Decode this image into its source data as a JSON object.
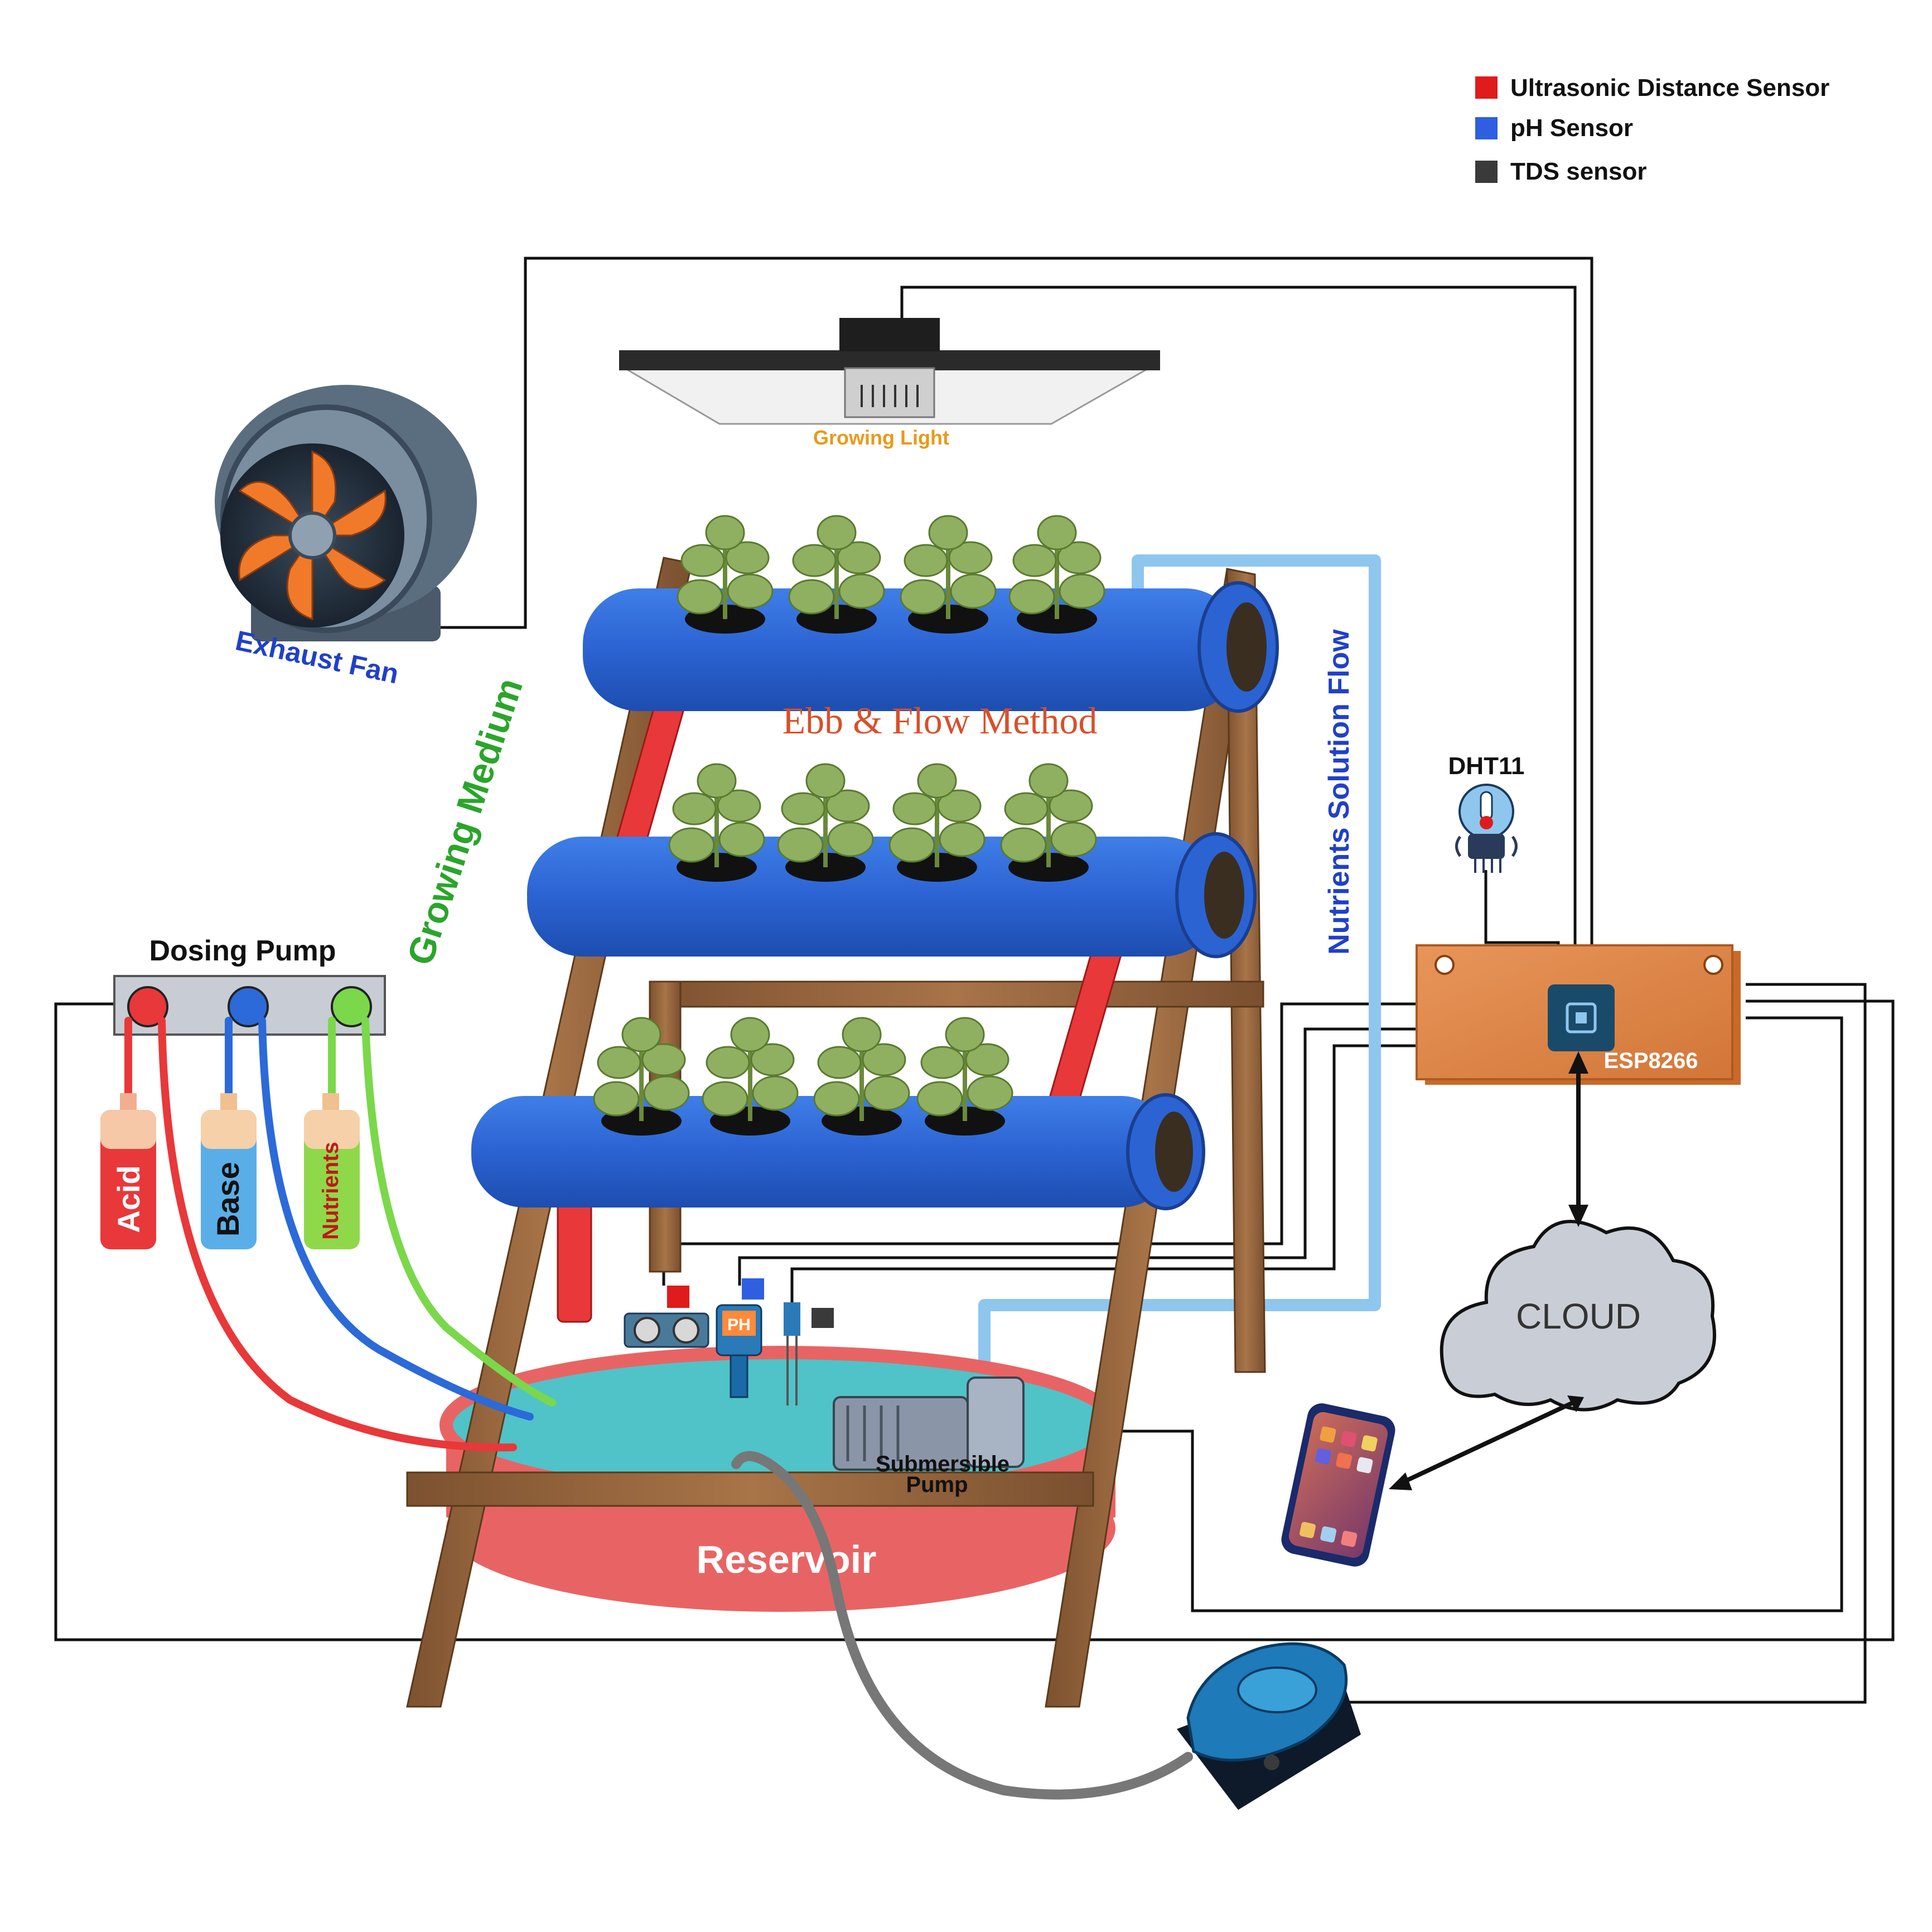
{
  "legend": {
    "items": [
      {
        "label": "Ultrasonic Distance Sensor",
        "color": "#e01b1b"
      },
      {
        "label": "pH Sensor",
        "color": "#2f5fe0"
      },
      {
        "label": "TDS sensor",
        "color": "#3a3a3a"
      }
    ]
  },
  "labels": {
    "growing_light": "Growing Light",
    "exhaust_fan": "Exhaust Fan",
    "method": "Ebb & Flow Method",
    "growing_medium": "Growing Medium",
    "nutrients_flow": "Nutrients Solution Flow",
    "dht11": "DHT11",
    "esp": "ESP8266",
    "dosing_pump": "Dosing Pump",
    "cloud": "CLOUD",
    "submersible_pump_1": "Submersible",
    "submersible_pump_2": "Pump",
    "reservoir": "Reservoir",
    "ph_badge": "PH"
  },
  "bottles": [
    {
      "label": "Acid",
      "color": "#e8383a"
    },
    {
      "label": "Base",
      "color": "#5aaee8"
    },
    {
      "label": "Nutrients",
      "color": "#8fd84a"
    }
  ],
  "colors": {
    "pipe": "#2b6ad8",
    "wood": "#9a6a3e",
    "board": "#e08a4a",
    "reservoir": "#e86464",
    "water": "#4fc3c8",
    "wire": "#111111",
    "flow_tube": "#8ec6ee",
    "green_text": "#2aa52a",
    "blue_text": "#2140c8",
    "orange_text": "#e89a1a",
    "red_text": "#d8502a"
  },
  "icons": [
    "exhaust-fan-icon",
    "growing-light-icon",
    "plant-icon",
    "dht11-sensor-icon",
    "esp8266-chip-icon",
    "cloud-icon",
    "smartphone-icon",
    "air-pump-icon",
    "ultrasonic-sensor-icon",
    "ph-sensor-icon",
    "tds-sensor-icon",
    "submersible-pump-icon"
  ]
}
